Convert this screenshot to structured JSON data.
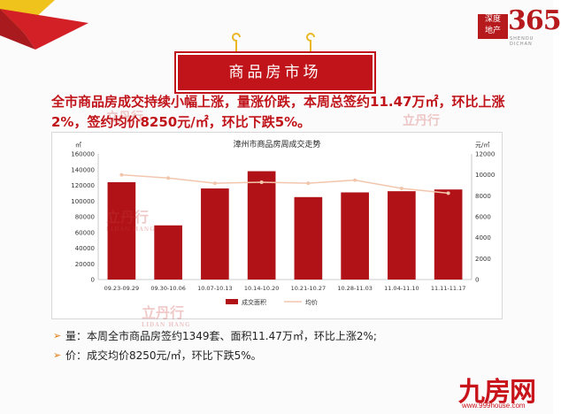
{
  "brand": {
    "box_line1": "深度",
    "box_line2": "地产",
    "number": "365",
    "sub": "SHENDU DICHAN"
  },
  "banner": {
    "title": "商品房市场"
  },
  "headline": "全市商品房成交持续小幅上涨，量涨价跌，本周总签约11.47万㎡，环比上涨2%，签约均价8250元/㎡，环比下跌5%。",
  "bullets": [
    "量：本周全市商品房签约1349套、面积11.47万㎡，环比上涨2%;",
    "价：成交均价8250元/㎡，环比下跌5%。"
  ],
  "watermark": {
    "text": "立丹行",
    "sub": "LIDAN HANG"
  },
  "logo999": {
    "text": "九房网",
    "url": "www.999house.com"
  },
  "colors": {
    "bar": "#b01217",
    "line": "#f2c6ad",
    "accent": "#c0141a"
  },
  "chart_data": {
    "type": "bar",
    "title": "漳州市商品房周成交走势",
    "categories": [
      "09.23-09.29",
      "09.30-10.06",
      "10.07-10.13",
      "10.14-10.20",
      "10.21-10.27",
      "10.28-11.03",
      "11.04-11.10",
      "11.11-11.17"
    ],
    "series": [
      {
        "name": "成交面积",
        "type": "bar",
        "axis": "left",
        "values": [
          124000,
          69000,
          116000,
          138000,
          105000,
          111000,
          112500,
          114700
        ]
      },
      {
        "name": "均价",
        "type": "line",
        "axis": "right",
        "values": [
          10000,
          9700,
          9200,
          9300,
          9200,
          9500,
          8700,
          8250
        ]
      }
    ],
    "y_left": {
      "label": "㎡",
      "ylim": [
        0,
        160000
      ],
      "ticks": [
        "0",
        "20000",
        "40000",
        "60000",
        "80000",
        "100000",
        "120000",
        "140000",
        "160000"
      ]
    },
    "y_right": {
      "label": "元/㎡",
      "ylim": [
        0,
        12000
      ],
      "ticks": [
        "0",
        "2000",
        "4000",
        "6000",
        "8000",
        "10000",
        "12000"
      ]
    },
    "grid": false,
    "legend_position": "bottom"
  }
}
